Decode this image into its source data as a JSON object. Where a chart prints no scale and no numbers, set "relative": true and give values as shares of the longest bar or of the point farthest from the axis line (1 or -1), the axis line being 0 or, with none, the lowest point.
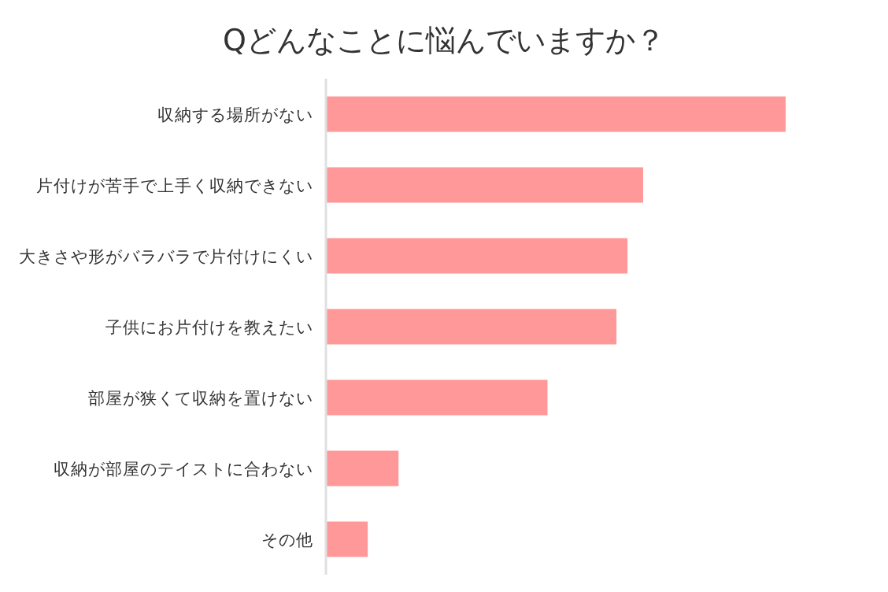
{
  "chart_data": {
    "type": "bar",
    "orientation": "horizontal",
    "relative": true,
    "title": "Qどんなことに悩んでいますか？",
    "categories": [
      "収納する場所がない",
      "片付けが苦手で上手く収納できない",
      "大きさや形がバラバラで片付けにくい",
      "子供にお片付けを教えたい",
      "部屋が狭くて収納を置けない",
      "収納が部屋のテイストに合わない",
      "その他"
    ],
    "values": [
      1,
      0.69,
      0.656,
      0.632,
      0.482,
      0.158,
      0.091
    ],
    "color": "#ff9999"
  }
}
